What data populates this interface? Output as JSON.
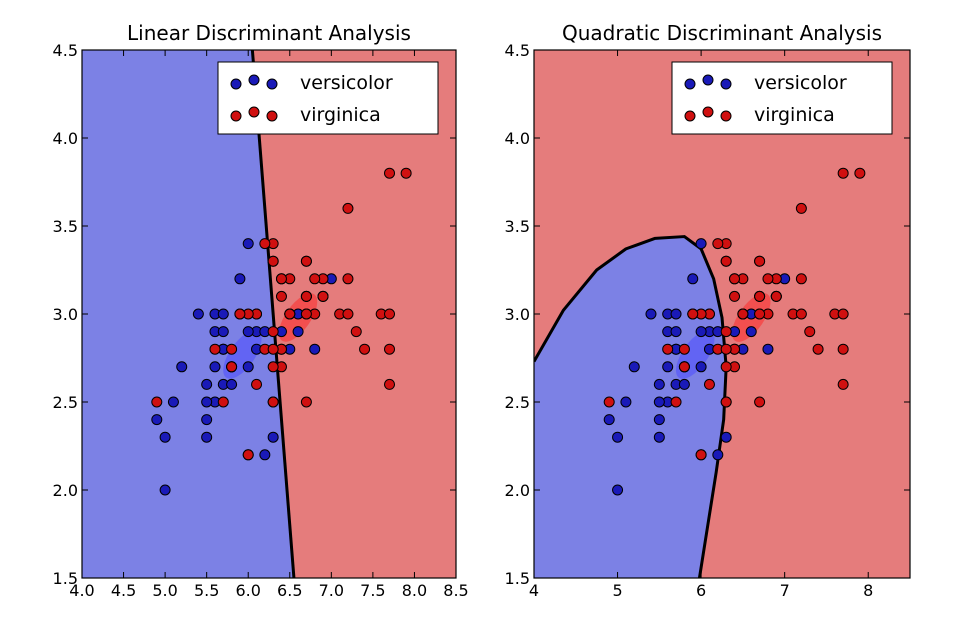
{
  "colors": {
    "blue_region": "#7c81e5",
    "red_region": "#e57c7c",
    "versicolor": "#1a1ab8",
    "virginica": "#d01010",
    "versicolor_ellipse": "#4d4dff",
    "virginica_ellipse": "#ff2a2a",
    "boundary": "#000000"
  },
  "legend": {
    "versicolor": "versicolor",
    "virginica": "virginica"
  },
  "chart_data": [
    {
      "type": "scatter",
      "title": "Linear Discriminant Analysis",
      "xlabel": "",
      "ylabel": "",
      "xlim": [
        4.0,
        8.5
      ],
      "ylim": [
        1.5,
        4.5
      ],
      "xticks": [
        4.0,
        4.5,
        5.0,
        5.5,
        6.0,
        6.5,
        7.0,
        7.5,
        8.0,
        8.5
      ],
      "xtick_labels": [
        "4.0",
        "4.5",
        "5.0",
        "5.5",
        "6.0",
        "6.5",
        "7.0",
        "7.5",
        "8.0",
        "8.5"
      ],
      "yticks": [
        1.5,
        2.0,
        2.5,
        3.0,
        3.5,
        4.0,
        4.5
      ],
      "ytick_labels": [
        "1.5",
        "2.0",
        "2.5",
        "3.0",
        "3.5",
        "4.0",
        "4.5"
      ],
      "legend_position": "top-right",
      "decision_boundary": [
        [
          6.05,
          4.5
        ],
        [
          6.55,
          1.5
        ]
      ],
      "background": "left of boundary versicolor, right virginica",
      "ellipses": [
        {
          "class": "versicolor",
          "center": [
            5.93,
            2.77
          ],
          "rx": 0.34,
          "ry": 0.15,
          "angle_deg": 55
        },
        {
          "class": "virginica",
          "center": [
            6.6,
            2.98
          ],
          "rx": 0.34,
          "ry": 0.15,
          "angle_deg": 55
        }
      ],
      "series": [
        {
          "name": "versicolor",
          "points": [
            [
              7.0,
              3.2
            ],
            [
              6.4,
              3.2
            ],
            [
              6.9,
              3.1
            ],
            [
              5.5,
              2.3
            ],
            [
              6.5,
              2.8
            ],
            [
              5.7,
              2.8
            ],
            [
              6.3,
              3.3
            ],
            [
              4.9,
              2.4
            ],
            [
              6.6,
              2.9
            ],
            [
              5.2,
              2.7
            ],
            [
              5.0,
              2.0
            ],
            [
              5.9,
              3.0
            ],
            [
              6.0,
              2.2
            ],
            [
              6.1,
              2.9
            ],
            [
              5.6,
              2.9
            ],
            [
              6.7,
              3.1
            ],
            [
              5.6,
              3.0
            ],
            [
              5.8,
              2.7
            ],
            [
              6.2,
              2.2
            ],
            [
              5.6,
              2.5
            ],
            [
              5.9,
              3.2
            ],
            [
              6.1,
              2.8
            ],
            [
              6.3,
              2.5
            ],
            [
              6.4,
              2.9
            ],
            [
              6.6,
              3.0
            ],
            [
              6.8,
              2.8
            ],
            [
              6.7,
              3.0
            ],
            [
              6.0,
              2.9
            ],
            [
              5.7,
              2.6
            ],
            [
              5.5,
              2.4
            ],
            [
              5.8,
              2.7
            ],
            [
              6.0,
              2.7
            ],
            [
              5.4,
              3.0
            ],
            [
              6.0,
              3.4
            ],
            [
              6.7,
              3.1
            ],
            [
              6.3,
              2.3
            ],
            [
              5.5,
              2.5
            ],
            [
              5.5,
              2.6
            ],
            [
              6.1,
              3.0
            ],
            [
              5.8,
              2.6
            ],
            [
              5.0,
              2.3
            ],
            [
              5.6,
              2.7
            ],
            [
              5.7,
              3.0
            ],
            [
              5.7,
              2.9
            ],
            [
              6.2,
              2.9
            ],
            [
              5.1,
              2.5
            ],
            [
              5.7,
              2.8
            ]
          ]
        },
        {
          "name": "virginica",
          "points": [
            [
              6.3,
              3.3
            ],
            [
              5.8,
              2.7
            ],
            [
              7.1,
              3.0
            ],
            [
              6.3,
              2.9
            ],
            [
              6.5,
              3.0
            ],
            [
              7.6,
              3.0
            ],
            [
              4.9,
              2.5
            ],
            [
              7.3,
              2.9
            ],
            [
              6.7,
              2.5
            ],
            [
              7.2,
              3.6
            ],
            [
              6.5,
              3.2
            ],
            [
              6.4,
              2.7
            ],
            [
              6.8,
              3.0
            ],
            [
              5.7,
              2.5
            ],
            [
              5.8,
              2.8
            ],
            [
              6.4,
              3.2
            ],
            [
              6.5,
              3.0
            ],
            [
              7.7,
              3.8
            ],
            [
              7.7,
              2.6
            ],
            [
              6.0,
              2.2
            ],
            [
              6.9,
              3.2
            ],
            [
              5.6,
              2.8
            ],
            [
              7.7,
              2.8
            ],
            [
              6.3,
              2.7
            ],
            [
              6.7,
              3.3
            ],
            [
              7.2,
              3.2
            ],
            [
              6.2,
              2.8
            ],
            [
              6.1,
              3.0
            ],
            [
              6.4,
              2.8
            ],
            [
              7.2,
              3.0
            ],
            [
              7.4,
              2.8
            ],
            [
              7.9,
              3.8
            ],
            [
              6.4,
              2.8
            ],
            [
              6.3,
              2.8
            ],
            [
              6.1,
              2.6
            ],
            [
              7.7,
              3.0
            ],
            [
              6.3,
              3.4
            ],
            [
              6.4,
              3.1
            ],
            [
              6.0,
              3.0
            ],
            [
              6.9,
              3.1
            ],
            [
              6.7,
              3.1
            ],
            [
              6.9,
              3.1
            ],
            [
              6.8,
              3.2
            ],
            [
              6.7,
              3.3
            ],
            [
              6.7,
              3.0
            ],
            [
              6.3,
              2.5
            ],
            [
              6.5,
              3.0
            ],
            [
              6.2,
              3.4
            ],
            [
              5.9,
              3.0
            ]
          ]
        }
      ]
    },
    {
      "type": "scatter",
      "title": "Quadratic Discriminant Analysis",
      "xlabel": "",
      "ylabel": "",
      "xlim": [
        4.0,
        8.5
      ],
      "ylim": [
        1.5,
        4.5
      ],
      "xticks": [
        4,
        5,
        6,
        7,
        8
      ],
      "xtick_labels": [
        "4",
        "5",
        "6",
        "7",
        "8"
      ],
      "yticks": [
        1.5,
        2.0,
        2.5,
        3.0,
        3.5,
        4.0,
        4.5
      ],
      "ytick_labels": [
        "1.5",
        "2.0",
        "2.5",
        "3.0",
        "3.5",
        "4.0",
        "4.5"
      ],
      "legend_position": "top-right",
      "decision_boundary": [
        [
          4.0,
          2.73
        ],
        [
          4.35,
          3.02
        ],
        [
          4.75,
          3.25
        ],
        [
          5.1,
          3.37
        ],
        [
          5.45,
          3.43
        ],
        [
          5.8,
          3.44
        ],
        [
          6.0,
          3.37
        ],
        [
          6.15,
          3.2
        ],
        [
          6.25,
          2.98
        ],
        [
          6.3,
          2.7
        ],
        [
          6.27,
          2.4
        ],
        [
          6.18,
          2.1
        ],
        [
          6.08,
          1.8
        ],
        [
          5.98,
          1.5
        ]
      ],
      "background": "inside boundary versicolor, outside virginica",
      "ellipses": [
        {
          "class": "versicolor",
          "center": [
            5.93,
            2.77
          ],
          "rx": 0.34,
          "ry": 0.15,
          "angle_deg": 55
        },
        {
          "class": "virginica",
          "center": [
            6.6,
            2.98
          ],
          "rx": 0.34,
          "ry": 0.15,
          "angle_deg": 55
        }
      ],
      "series": [
        {
          "name": "versicolor",
          "points": [
            [
              7.0,
              3.2
            ],
            [
              6.4,
              3.2
            ],
            [
              6.9,
              3.1
            ],
            [
              5.5,
              2.3
            ],
            [
              6.5,
              2.8
            ],
            [
              5.7,
              2.8
            ],
            [
              6.3,
              3.3
            ],
            [
              4.9,
              2.4
            ],
            [
              6.6,
              2.9
            ],
            [
              5.2,
              2.7
            ],
            [
              5.0,
              2.0
            ],
            [
              5.9,
              3.0
            ],
            [
              6.0,
              2.2
            ],
            [
              6.1,
              2.9
            ],
            [
              5.6,
              2.9
            ],
            [
              6.7,
              3.1
            ],
            [
              5.6,
              3.0
            ],
            [
              5.8,
              2.7
            ],
            [
              6.2,
              2.2
            ],
            [
              5.6,
              2.5
            ],
            [
              5.9,
              3.2
            ],
            [
              6.1,
              2.8
            ],
            [
              6.3,
              2.5
            ],
            [
              6.4,
              2.9
            ],
            [
              6.6,
              3.0
            ],
            [
              6.8,
              2.8
            ],
            [
              6.7,
              3.0
            ],
            [
              6.0,
              2.9
            ],
            [
              5.7,
              2.6
            ],
            [
              5.5,
              2.4
            ],
            [
              5.8,
              2.7
            ],
            [
              6.0,
              2.7
            ],
            [
              5.4,
              3.0
            ],
            [
              6.0,
              3.4
            ],
            [
              6.7,
              3.1
            ],
            [
              6.3,
              2.3
            ],
            [
              5.5,
              2.5
            ],
            [
              5.5,
              2.6
            ],
            [
              6.1,
              3.0
            ],
            [
              5.8,
              2.6
            ],
            [
              5.0,
              2.3
            ],
            [
              5.6,
              2.7
            ],
            [
              5.7,
              3.0
            ],
            [
              5.7,
              2.9
            ],
            [
              6.2,
              2.9
            ],
            [
              5.1,
              2.5
            ],
            [
              5.7,
              2.8
            ]
          ]
        },
        {
          "name": "virginica",
          "points": [
            [
              6.3,
              3.3
            ],
            [
              5.8,
              2.7
            ],
            [
              7.1,
              3.0
            ],
            [
              6.3,
              2.9
            ],
            [
              6.5,
              3.0
            ],
            [
              7.6,
              3.0
            ],
            [
              4.9,
              2.5
            ],
            [
              7.3,
              2.9
            ],
            [
              6.7,
              2.5
            ],
            [
              7.2,
              3.6
            ],
            [
              6.5,
              3.2
            ],
            [
              6.4,
              2.7
            ],
            [
              6.8,
              3.0
            ],
            [
              5.7,
              2.5
            ],
            [
              5.8,
              2.8
            ],
            [
              6.4,
              3.2
            ],
            [
              6.5,
              3.0
            ],
            [
              7.7,
              3.8
            ],
            [
              7.7,
              2.6
            ],
            [
              6.0,
              2.2
            ],
            [
              6.9,
              3.2
            ],
            [
              5.6,
              2.8
            ],
            [
              7.7,
              2.8
            ],
            [
              6.3,
              2.7
            ],
            [
              6.7,
              3.3
            ],
            [
              7.2,
              3.2
            ],
            [
              6.2,
              2.8
            ],
            [
              6.1,
              3.0
            ],
            [
              6.4,
              2.8
            ],
            [
              7.2,
              3.0
            ],
            [
              7.4,
              2.8
            ],
            [
              7.9,
              3.8
            ],
            [
              6.4,
              2.8
            ],
            [
              6.3,
              2.8
            ],
            [
              6.1,
              2.6
            ],
            [
              7.7,
              3.0
            ],
            [
              6.3,
              3.4
            ],
            [
              6.4,
              3.1
            ],
            [
              6.0,
              3.0
            ],
            [
              6.9,
              3.1
            ],
            [
              6.7,
              3.1
            ],
            [
              6.9,
              3.1
            ],
            [
              6.8,
              3.2
            ],
            [
              6.7,
              3.3
            ],
            [
              6.7,
              3.0
            ],
            [
              6.3,
              2.5
            ],
            [
              6.5,
              3.0
            ],
            [
              6.2,
              3.4
            ],
            [
              5.9,
              3.0
            ]
          ]
        }
      ]
    }
  ]
}
